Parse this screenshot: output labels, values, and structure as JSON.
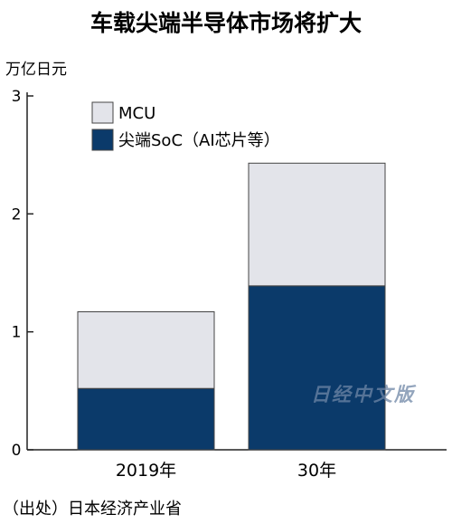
{
  "title": "车载尖端半导体市场将扩大",
  "unit_label": "万亿日元",
  "source": "（出处）日本经济产业省",
  "watermark": "日经中文版",
  "colors": {
    "mcu": "#e3e4ea",
    "soc": "#0b3a6a",
    "outline": "#444444",
    "axis": "#222222"
  },
  "chart_data": {
    "type": "bar",
    "stacked": true,
    "categories": [
      "2019年",
      "30年"
    ],
    "series": [
      {
        "name": "尖端SoC（AI芯片等）",
        "values": [
          0.52,
          1.39
        ]
      },
      {
        "name": "MCU",
        "values": [
          0.65,
          1.04
        ]
      }
    ],
    "ylim": [
      0,
      3
    ],
    "yticks": [
      "0",
      "1",
      "2",
      "3"
    ],
    "ylabel": "万亿日元",
    "legend": [
      "MCU",
      "尖端SoC（AI芯片等）"
    ],
    "legend_position": "top-left",
    "grid": false
  }
}
